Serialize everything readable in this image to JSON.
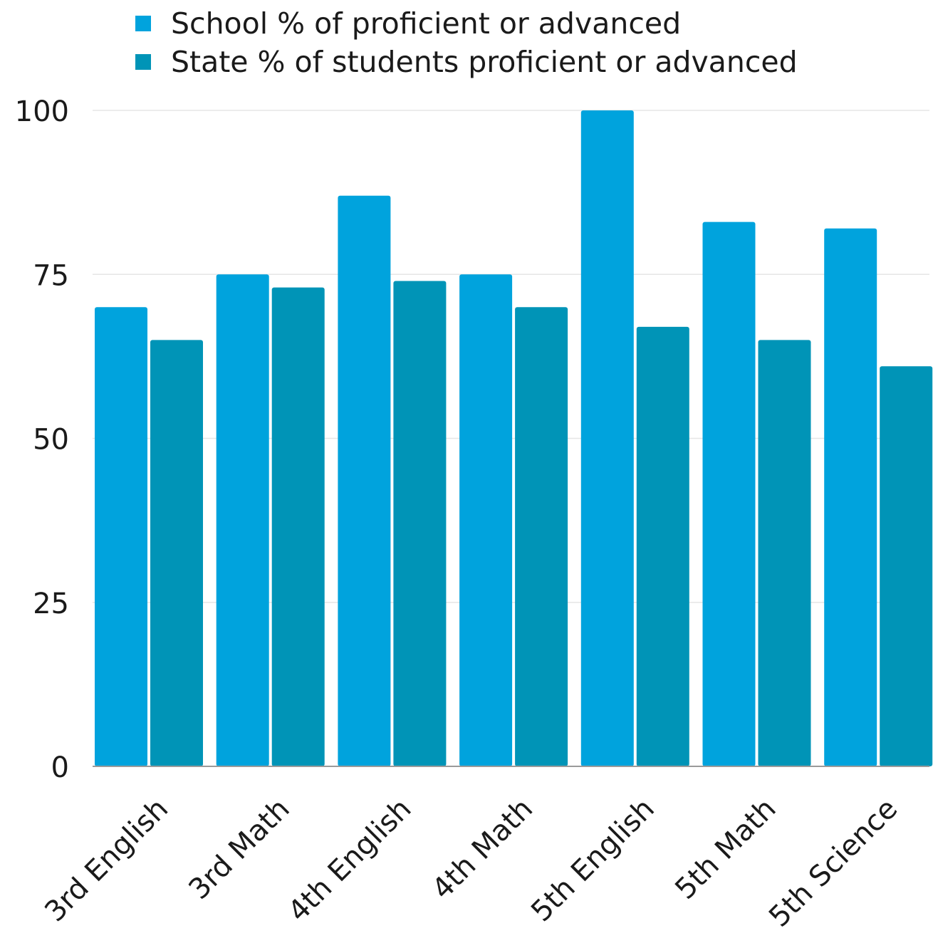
{
  "chart_data": {
    "type": "bar",
    "categories": [
      "3rd English",
      "3rd Math",
      "4th English",
      "4th  Math",
      "5th English",
      "5th Math",
      "5th Science"
    ],
    "series": [
      {
        "name": "School % of proficient or advanced",
        "color": "#00A3DD",
        "values": [
          70,
          75,
          87,
          75,
          100,
          83,
          82
        ]
      },
      {
        "name": "State % of students proficient or advanced",
        "color": "#0094B7",
        "values": [
          65,
          73,
          74,
          70,
          67,
          65,
          61
        ]
      }
    ],
    "yticks": [
      "0",
      "25",
      "50",
      "75",
      "100"
    ],
    "ylim": [
      0,
      100
    ],
    "grid": true,
    "legend_position": "top-left",
    "title": "",
    "xlabel": "",
    "ylabel": ""
  }
}
